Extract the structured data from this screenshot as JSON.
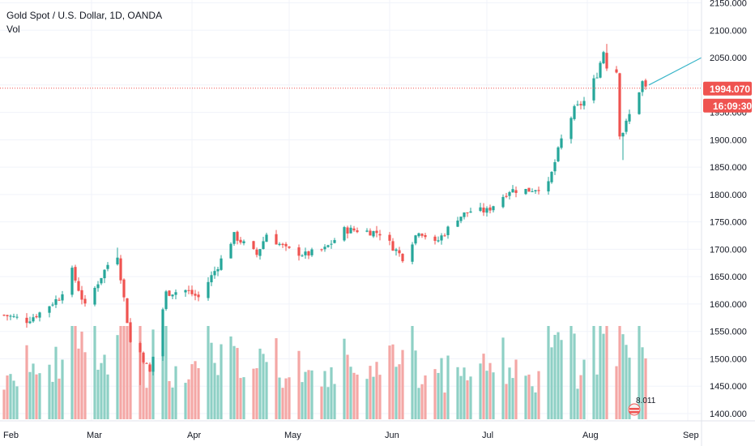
{
  "title": "Gold Spot / U.S. Dollar, 1D, OANDA",
  "volume_label": "Vol",
  "last_price": "1994.070",
  "countdown": "16:09:30",
  "volume_readout": "8.011",
  "colors": {
    "up": "#26a69a",
    "down": "#ef5350",
    "up_volume": "#8ed0c5",
    "down_volume": "#f4a7a5",
    "grid": "#f0f3fa",
    "price_line": "#ef5350",
    "projection": "#3bb6c9"
  },
  "chart_data": {
    "type": "candlestick",
    "title": "Gold Spot / U.S. Dollar, 1D, OANDA",
    "y_axis": {
      "range": [
        1390,
        2160
      ],
      "ticks": [
        "1400.000",
        "1450.000",
        "1500.000",
        "1550.000",
        "1600.000",
        "1650.000",
        "1700.000",
        "1750.000",
        "1800.000",
        "1850.000",
        "1900.000",
        "1950.000",
        "2000.000",
        "2050.000",
        "2100.000",
        "2150.000"
      ]
    },
    "x_axis": {
      "labels": [
        "Feb",
        "Mar",
        "Apr",
        "May",
        "Jun",
        "Jul",
        "Aug",
        "Sep"
      ],
      "range": [
        "2020-02-01",
        "2020-09-03"
      ]
    },
    "grid": true,
    "anchors": [
      [
        "2020-02-03",
        1580
      ],
      [
        "2020-02-10",
        1570
      ],
      [
        "2020-02-14",
        1584
      ],
      [
        "2020-02-20",
        1612
      ],
      [
        "2020-02-24",
        1660
      ],
      [
        "2020-02-28",
        1595
      ],
      [
        "2020-03-03",
        1640
      ],
      [
        "2020-03-06",
        1672
      ],
      [
        "2020-03-09",
        1690
      ],
      [
        "2020-03-13",
        1530
      ],
      [
        "2020-03-16",
        1512
      ],
      [
        "2020-03-19",
        1475
      ],
      [
        "2020-03-24",
        1620
      ],
      [
        "2020-03-30",
        1625
      ],
      [
        "2020-04-03",
        1612
      ],
      [
        "2020-04-09",
        1670
      ],
      [
        "2020-04-14",
        1725
      ],
      [
        "2020-04-21",
        1690
      ],
      [
        "2020-04-24",
        1728
      ],
      [
        "2020-04-30",
        1700
      ],
      [
        "2020-05-06",
        1690
      ],
      [
        "2020-05-12",
        1700
      ],
      [
        "2020-05-18",
        1735
      ],
      [
        "2020-05-22",
        1735
      ],
      [
        "2020-05-29",
        1730
      ],
      [
        "2020-06-05",
        1685
      ],
      [
        "2020-06-10",
        1735
      ],
      [
        "2020-06-15",
        1710
      ],
      [
        "2020-06-22",
        1758
      ],
      [
        "2020-06-26",
        1770
      ],
      [
        "2020-07-01",
        1770
      ],
      [
        "2020-07-08",
        1808
      ],
      [
        "2020-07-14",
        1808
      ],
      [
        "2020-07-20",
        1818
      ],
      [
        "2020-07-24",
        1900
      ],
      [
        "2020-07-28",
        1955
      ],
      [
        "2020-07-31",
        1970
      ],
      [
        "2020-08-04",
        2020
      ],
      [
        "2020-08-06",
        2062
      ],
      [
        "2020-08-07",
        2035
      ],
      [
        "2020-08-10",
        2025
      ],
      [
        "2020-08-11",
        1912
      ],
      [
        "2020-08-12",
        1915
      ],
      [
        "2020-08-14",
        1945
      ],
      [
        "2020-08-18",
        2005
      ],
      [
        "2020-08-19",
        1994.07
      ]
    ],
    "volume_range": [
      0,
      14
    ]
  }
}
